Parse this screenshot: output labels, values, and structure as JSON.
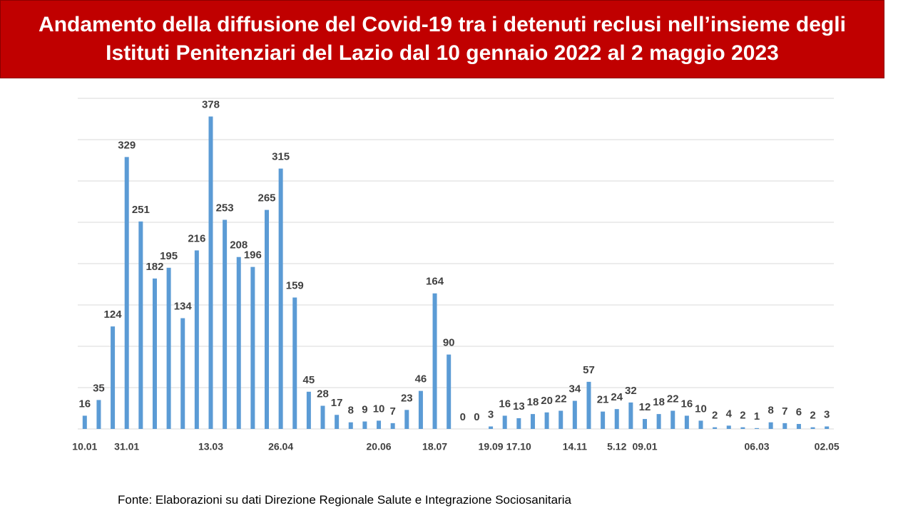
{
  "chart_data": {
    "type": "bar",
    "title": "Andamento della diffusione del Covid-19 tra i detenuti reclusi nell’insieme degli Istituti Penitenziari del Lazio dal 10 gennaio 2022 al 2 maggio 2023",
    "source": "Fonte: Elaborazioni su dati Direzione Regionale Salute e Integrazione Sociosanitaria",
    "categories": [
      "10.01",
      null,
      null,
      "31.01",
      null,
      null,
      null,
      null,
      null,
      "13.03",
      null,
      null,
      null,
      null,
      "26.04",
      null,
      null,
      null,
      null,
      null,
      null,
      "20.06",
      null,
      null,
      null,
      "18.07",
      null,
      null,
      null,
      "19.09",
      null,
      "17.10",
      null,
      null,
      null,
      "14.11",
      null,
      null,
      "5.12",
      null,
      "09.01",
      null,
      null,
      null,
      null,
      null,
      null,
      null,
      "06.03",
      null,
      null,
      null,
      null,
      "02.05"
    ],
    "values": [
      16,
      35,
      124,
      329,
      251,
      182,
      195,
      134,
      216,
      378,
      253,
      208,
      196,
      265,
      315,
      159,
      45,
      28,
      17,
      8,
      9,
      10,
      7,
      23,
      46,
      164,
      90,
      0,
      0,
      3,
      16,
      13,
      18,
      20,
      22,
      34,
      57,
      21,
      24,
      32,
      12,
      18,
      22,
      16,
      10,
      2,
      4,
      2,
      1,
      8,
      7,
      6,
      2,
      3
    ],
    "color": "#5b9bd5",
    "ylim": [
      0,
      400
    ],
    "yticks": [
      0,
      50,
      100,
      150,
      200,
      250,
      300,
      350,
      400
    ],
    "grid": true
  }
}
